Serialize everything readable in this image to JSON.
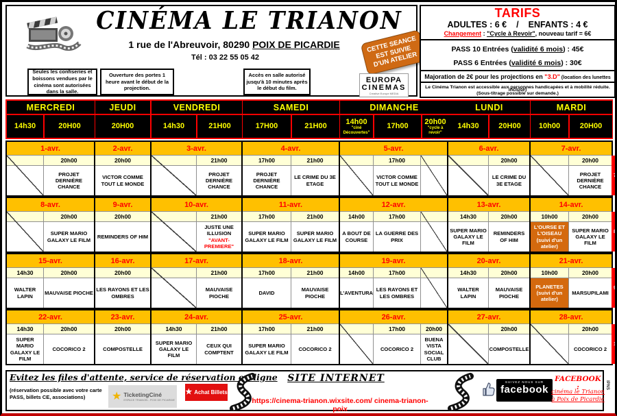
{
  "header": {
    "title": "CINÉMA  LE  TRIANON",
    "address_prefix": "1 rue de l'Abreuvoir, 80290 ",
    "address_city": "POIX DE PICARDIE",
    "phone": "Tél : 03 22 55 05 42",
    "note1": "Seules les confiseries et boissons vendues par le cinéma sont autorisées dans la salle.",
    "note2": "Ouverture des portes 1 heure avant le début de  la projection.",
    "note3": "Accès en salle autorisé jusqu'à 10 minutes après le début du film.",
    "sticker_lines": [
      "CETTE SEANCE",
      "EST SUIVIE",
      "D'UN ATELIER"
    ],
    "europa_line1": "EUROPA",
    "europa_line2": "CINEMAS",
    "europa_sub": "Creative Europe MEDIA"
  },
  "tarifs": {
    "title": "TARIFS",
    "adults": "ADULTES : 6 €",
    "slash": "/",
    "children": "ENFANTS  :  4 €",
    "changement_label": "Changement",
    "changement_mid": " : ",
    "changement_cycle": "\"Cycle à Revoir\"",
    "changement_rest": ", nouveau tarif = 6€",
    "pass10_a": "PASS  10  Entrées (",
    "pass10_b": "validité 6 mois",
    "pass10_c": ")  :  45€",
    "pass6_a": "PASS   6  Entrées (",
    "pass6_b": "validité 6 mois",
    "pass6_c": ")  :  30€",
    "majoration_a": "Majoration de  2€ pour les projections en ",
    "majoration_b": "\"3.D\"",
    "majoration_c": " (location des lunettes incluse)",
    "accessibility": "Le Cinéma Trianon est accessible aux personnes handicapées et à mobilité réduite. (Sous-titrage possible sur demande.)"
  },
  "schedule": {
    "days": [
      {
        "name": "MERCREDI",
        "times": [
          {
            "label": "14h30"
          },
          {
            "label": "20H00"
          }
        ]
      },
      {
        "name": "JEUDI",
        "times": [
          {
            "label": "20H00"
          }
        ]
      },
      {
        "name": "VENDREDI",
        "times": [
          {
            "label": "14h30"
          },
          {
            "label": "21H00"
          }
        ]
      },
      {
        "name": "SAMEDI",
        "times": [
          {
            "label": "17H00"
          },
          {
            "label": "21H00"
          }
        ]
      },
      {
        "name": "DIMANCHE",
        "times": [
          {
            "label": "14h00",
            "note": "\"ciné Découvertes\""
          },
          {
            "label": "17h00"
          },
          {
            "label": "20h00",
            "note": "\"cycle à revoir\""
          }
        ]
      },
      {
        "name": "LUNDI",
        "times": [
          {
            "label": "14h30"
          },
          {
            "label": "20H00"
          }
        ]
      },
      {
        "name": "MARDI",
        "times": [
          {
            "label": "10h00"
          },
          {
            "label": "20H00"
          }
        ]
      }
    ],
    "weeks": [
      {
        "tab": "7",
        "dates": [
          "1-avr.",
          "2-avr.",
          "3-avr.",
          "4-avr.",
          "5-avr.",
          "6-avr.",
          "7-avr."
        ],
        "cells": [
          {
            "empty": true
          },
          {
            "time": "20h00",
            "film": "PROJET DERNIÈRE CHANCE"
          },
          {
            "time": "20h00",
            "film": "VICTOR COMME TOUT LE MONDE"
          },
          {
            "empty": true
          },
          {
            "time": "21h00",
            "film": "PROJET DERNIÈRE CHANCE"
          },
          {
            "time": "17h00",
            "film": "PROJET DERNIÈRE CHANCE"
          },
          {
            "time": "21h00",
            "film": "LE CRIME DU 3E ETAGE"
          },
          {
            "empty": true
          },
          {
            "time": "17h00",
            "film": "VICTOR COMME TOUT LE MONDE"
          },
          {
            "empty": true
          },
          {
            "empty": true
          },
          {
            "time": "20h00",
            "film": "LE CRIME DU 3E ETAGE"
          },
          {
            "empty": true
          },
          {
            "time": "20h00",
            "film": "PROJET DERNIÈRE CHANCE"
          }
        ]
      },
      {
        "tab": "8",
        "dates": [
          "8-avr.",
          "9-avr.",
          "10-avr.",
          "11-avr.",
          "12-avr.",
          "13-avr.",
          "14-avr."
        ],
        "cells": [
          {
            "empty": true
          },
          {
            "time": "20h00",
            "film": "SUPER MARIO GALAXY LE FILM"
          },
          {
            "time": "20h00",
            "film": "REMINDERS OF HIM"
          },
          {
            "empty": true
          },
          {
            "time": "21h00",
            "film": "JUSTE UNE ILLUSION",
            "note": "\"AVANT-PREMIERE\"",
            "note_red": true
          },
          {
            "time": "17h00",
            "film": "SUPER MARIO GALAXY LE FILM"
          },
          {
            "time": "21h00",
            "film": "SUPER MARIO GALAXY LE FILM"
          },
          {
            "time": "14h00",
            "film": "A BOUT DE COURSE"
          },
          {
            "time": "17h00",
            "film": "LA GUERRE DES PRIX"
          },
          {
            "empty": true
          },
          {
            "time": "14h30",
            "film": "SUPER MARIO GALAXY LE FILM"
          },
          {
            "time": "20h00",
            "film": "REMINDERS OF HIM"
          },
          {
            "time": "10h00",
            "film": "L'OURSE ET L'OISEAU",
            "note": "(suivi d'un atelier)",
            "atelier": true
          },
          {
            "time": "20h00",
            "film": "SUPER MARIO GALAXY LE FILM"
          }
        ]
      },
      {
        "tab": "9",
        "dates": [
          "15-avr.",
          "16-avr.",
          "17-avr.",
          "18-avr.",
          "19-avr.",
          "20-avr.",
          "21-avr."
        ],
        "cells": [
          {
            "time": "14h30",
            "film": "WALTER LAPIN"
          },
          {
            "time": "20h00",
            "film": "MAUVAISE PIOCHE"
          },
          {
            "time": "20h00",
            "film": "LES RAYONS ET LES OMBRES"
          },
          {
            "empty": true
          },
          {
            "time": "21h00",
            "film": "MAUVAISE PIOCHE"
          },
          {
            "time": "17h00",
            "film": "DAVID"
          },
          {
            "time": "21h00",
            "film": "MAUVAISE PIOCHE"
          },
          {
            "time": "14h00",
            "film": "L'AVENTURA"
          },
          {
            "time": "17h00",
            "film": "LES RAYONS ET LES OMBRES"
          },
          {
            "empty": true
          },
          {
            "time": "14h30",
            "film": "WALTER LAPIN"
          },
          {
            "time": "20h00",
            "film": "MAUVAISE PIOCHE"
          },
          {
            "time": "10h00",
            "film": "PLANETES",
            "note": "(suivi d'un atelier)",
            "atelier": true
          },
          {
            "time": "20h00",
            "film": "MARSUPILAMI"
          }
        ]
      },
      {
        "tab": "1",
        "dates": [
          "22-avr.",
          "23-avr.",
          "24-avr.",
          "25-avr.",
          "26-avr.",
          "27-avr.",
          "28-avr."
        ],
        "cells": [
          {
            "time": "14h30",
            "film": "SUPER MARIO GALAXY LE FILM"
          },
          {
            "time": "20h00",
            "film": "COCORICO 2"
          },
          {
            "time": "20h00",
            "film": "COMPOSTELLE"
          },
          {
            "time": "14h30",
            "film": "SUPER MARIO GALAXY LE FILM"
          },
          {
            "time": "21h00",
            "film": "CEUX QUI COMPTENT"
          },
          {
            "time": "17h00",
            "film": "SUPER MARIO GALAXY LE FILM"
          },
          {
            "time": "21h00",
            "film": "COCORICO 2"
          },
          {
            "empty": true
          },
          {
            "time": "17h00",
            "film": "COCORICO 2"
          },
          {
            "time": "20h00",
            "film": "BUENA VISTA SOCIAL CLUB"
          },
          {
            "empty": true
          },
          {
            "time": "20h00",
            "film": "COMPOSTELLE"
          },
          {
            "empty": true
          },
          {
            "time": "20h00",
            "film": "COCORICO 2"
          }
        ]
      }
    ]
  },
  "footer": {
    "reserve_title": "Evitez les files d'attente, service de réservation en ligne",
    "reserve_note": "(réservation possible avec votre carte PASS, billets CE, associations)",
    "ticketing_name": "TicketingCiné",
    "ticketing_sub": "ESPACE TRIANON - POIX DE PICARDIE",
    "achat_label": "Achat Billets",
    "site_title": "SITE INTERNET",
    "site_url": "https://cinema-trianon.wixsite.com/ cinema-trianon-poix",
    "fb_follow": "SUIVEZ NOUS SUR",
    "fb_word": "facebook",
    "fb_label": "FACEBOOK  :",
    "fb_link": "cinéma le Trianon à Poix de Picardie",
    "ipns": "IPNS"
  },
  "colors": {
    "accent_red": "#FF0000",
    "date_band_orange": "#FFC000",
    "time_band_yellow": "#FFFFD6",
    "atelier_orange": "#D4690E",
    "day_text_yellow": "#FFFF00"
  }
}
